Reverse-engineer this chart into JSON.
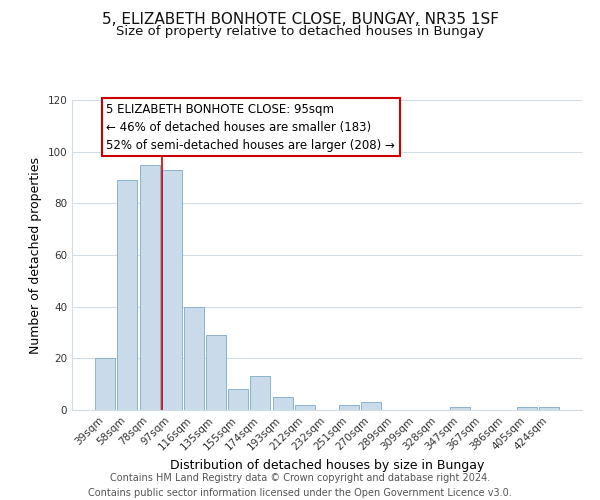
{
  "title": "5, ELIZABETH BONHOTE CLOSE, BUNGAY, NR35 1SF",
  "subtitle": "Size of property relative to detached houses in Bungay",
  "xlabel": "Distribution of detached houses by size in Bungay",
  "ylabel": "Number of detached properties",
  "bar_labels": [
    "39sqm",
    "58sqm",
    "78sqm",
    "97sqm",
    "116sqm",
    "135sqm",
    "155sqm",
    "174sqm",
    "193sqm",
    "212sqm",
    "232sqm",
    "251sqm",
    "270sqm",
    "289sqm",
    "309sqm",
    "328sqm",
    "347sqm",
    "367sqm",
    "386sqm",
    "405sqm",
    "424sqm"
  ],
  "bar_values": [
    20,
    89,
    95,
    93,
    40,
    29,
    8,
    13,
    5,
    2,
    0,
    2,
    3,
    0,
    0,
    0,
    1,
    0,
    0,
    1,
    1
  ],
  "bar_color": "#c9daea",
  "bar_edge_color": "#8ab4cc",
  "vline_color": "#cc0000",
  "vline_pos": 2.575,
  "ylim": [
    0,
    120
  ],
  "yticks": [
    0,
    20,
    40,
    60,
    80,
    100,
    120
  ],
  "annotation_title": "5 ELIZABETH BONHOTE CLOSE: 95sqm",
  "annotation_line1": "← 46% of detached houses are smaller (183)",
  "annotation_line2": "52% of semi-detached houses are larger (208) →",
  "annotation_box_facecolor": "#ffffff",
  "annotation_box_edgecolor": "#cc0000",
  "footer_line1": "Contains HM Land Registry data © Crown copyright and database right 2024.",
  "footer_line2": "Contains public sector information licensed under the Open Government Licence v3.0.",
  "title_fontsize": 11,
  "subtitle_fontsize": 9.5,
  "axis_label_fontsize": 9,
  "tick_fontsize": 7.5,
  "annotation_fontsize": 8.5,
  "footer_fontsize": 7,
  "bg_color": "#ffffff",
  "grid_color": "#d0dce8",
  "plot_bg_color": "#ffffff"
}
